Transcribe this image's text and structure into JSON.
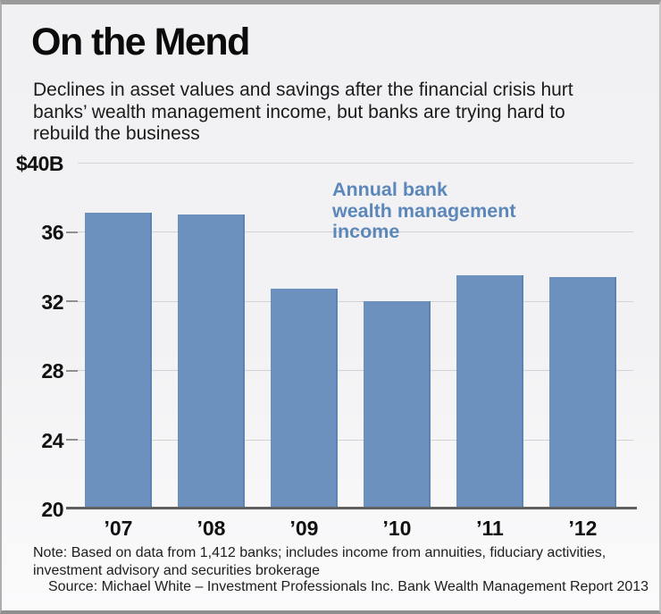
{
  "chart_data": {
    "type": "bar",
    "title": "On the Mend",
    "subtitle": "Declines in asset values and savings after the financial crisis hurt banks’ wealth management income, but banks are trying hard to rebuild the business",
    "categories": [
      "’07",
      "’08",
      "’09",
      "’10",
      "’11",
      "’12"
    ],
    "values": [
      37.1,
      37.0,
      32.7,
      32.0,
      33.5,
      33.4
    ],
    "ylim": [
      20,
      40
    ],
    "y_ticks": [
      40,
      36,
      32,
      28,
      24,
      20
    ],
    "y_tick_labels": [
      "$40B",
      "36",
      "32",
      "28",
      "24",
      "20"
    ],
    "gridlines": [
      40,
      36,
      32,
      28,
      24
    ],
    "annotation_lines": [
      "Annual bank",
      "wealth management",
      "income"
    ],
    "bar_color": "#6d91bf",
    "bar_edge_color": "#5e83b0",
    "annotation_color": "#5c87ba",
    "legend_position": "top-right inside plot",
    "grid": "horizontal only",
    "note": "Note: Based on data from 1,412 banks; includes income from annuities, fiduciary activities, investment advisory and securities brokerage",
    "source": "Source: Michael White – Investment Professionals Inc. Bank Wealth Management Report 2013"
  }
}
